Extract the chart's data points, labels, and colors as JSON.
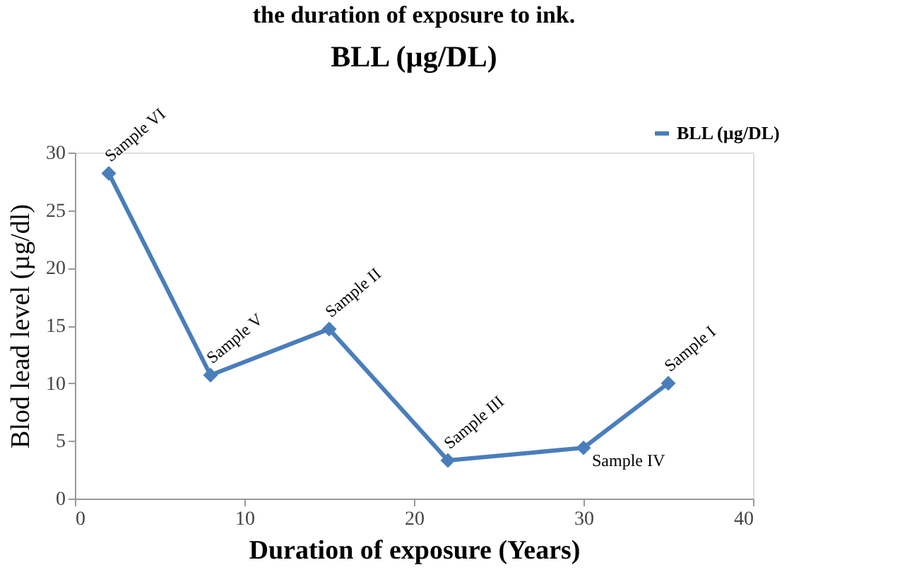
{
  "chart_data": {
    "type": "line",
    "title": "BLL (µg/DL)",
    "xlabel": "Duration of exposure (Years)",
    "ylabel": "Blod lead level (µg/dl)",
    "x": [
      2,
      8,
      15,
      22,
      30,
      35
    ],
    "series": [
      {
        "name": "BLL (µg/DL)",
        "color": "#4a7ebb",
        "values": [
          28.2,
          10.7,
          14.7,
          3.3,
          4.4,
          10.0
        ]
      }
    ],
    "annotations": [
      "the duration of exposure to ink.",
      {
        "text": "Sample VI",
        "x": 2,
        "y": 28.2
      },
      {
        "text": "Sample V",
        "x": 8,
        "y": 10.7
      },
      {
        "text": "Sample II",
        "x": 15,
        "y": 14.7
      },
      {
        "text": "Sample III",
        "x": 22,
        "y": 3.3
      },
      {
        "text": "Sample IV",
        "x": 30,
        "y": 4.4
      },
      {
        "text": "Sample I",
        "x": 35,
        "y": 10.0
      }
    ],
    "xlim": [
      0,
      40
    ],
    "xticks": [
      0,
      10,
      20,
      30,
      40
    ],
    "ylim": [
      0,
      30
    ],
    "yticks": [
      0,
      5,
      10,
      15,
      20,
      25,
      30
    ],
    "grid": false,
    "legend": "top right",
    "marker": "diamond",
    "line_style": "solid"
  }
}
